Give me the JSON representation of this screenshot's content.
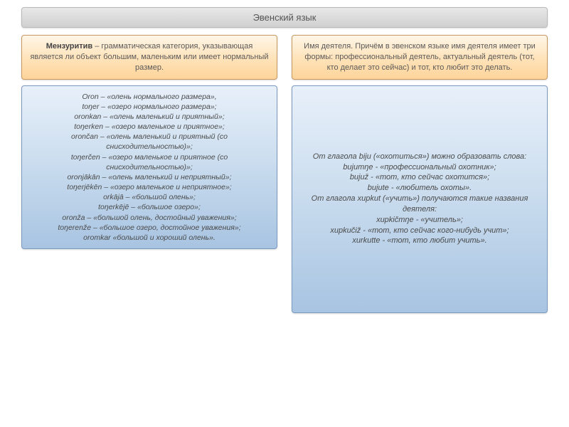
{
  "title": "Эвенский язык",
  "left": {
    "header_bold": "Мензуритив",
    "header_rest": " – грамматическая категория, указывающая является ли объект большим, маленьким или имеет нормальный размер.",
    "body": "Oron – «олень нормального размера»,\ntoŋer – «озеро нормального размера»;\noronkan – «олень маленький и приятный»;\ntoŋerken – «озеро маленькое и приятное»;\norončan – «олень маленький и приятный (со снисходительностью)»;\ntoŋerčen – «озеро маленькое и приятное (со снисходительностью)»;\noronjākān – «олень маленький и неприятный»;\ntoŋerjēkēn – «озеро маленькое и неприятное»;\norkājā – «большой олень»;\ntoŋerkējē – «большое озеро»;\noronža – «большой олень, достойный уважения»;\ntoŋerenže – «большое озеро, достойное уважения»;\noromkar «большой и хороший олень»."
  },
  "right": {
    "header": "Имя деятеля. Причём в эвенском языке имя деятеля имеет три формы: профессиональный деятель, актуальный деятель (тот, кто делает это сейчас) и тот, кто любит это делать.",
    "body": "От глагола biju («охотиться») можно образовать слова:\nbujumŋe - «профессиональный охотник»;\nbujuž - «тот, кто сейчас охотится»;\nbujute - «любитель охоты».\nОт глагола xupkut («учить») получаются такие названия деятеля:\nxupkičmŋe - «учитель»;\nxupkučiž - «тот, кто сейчас кого-нибудь учит»;\nxurkutte - «тот, кто любит учить»."
  }
}
